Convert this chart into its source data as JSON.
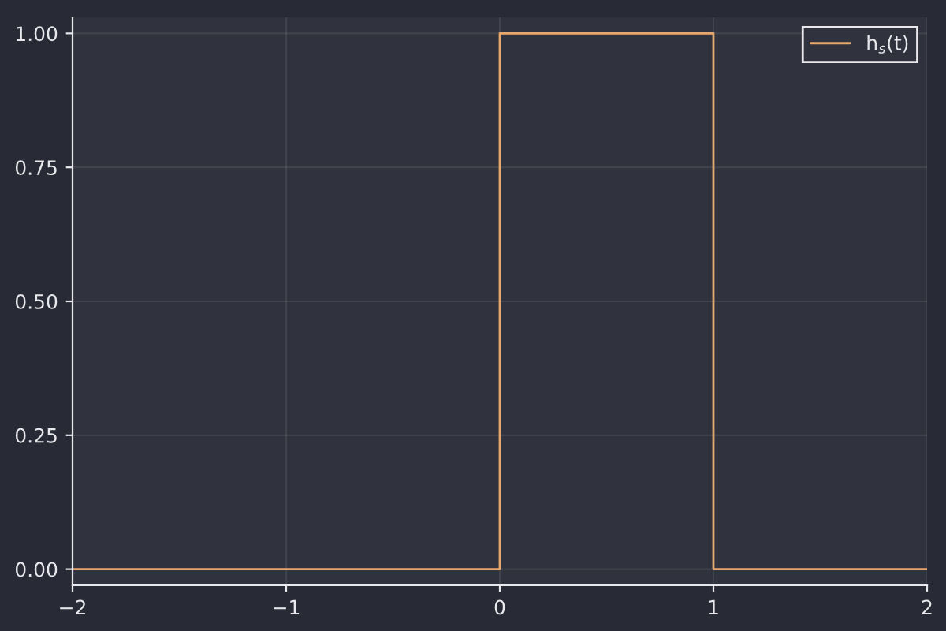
{
  "chart_data": {
    "type": "line",
    "x": [
      -2,
      0,
      0,
      1,
      1,
      2
    ],
    "series": [
      {
        "name": "h$_{s}$(t)",
        "color": "#e8a86a",
        "values": [
          0,
          0,
          1,
          1,
          0,
          0
        ]
      }
    ],
    "xlim": [
      -2,
      2
    ],
    "xticks": [
      -2,
      -1,
      0,
      1,
      2
    ],
    "ylim": [
      -0.03,
      1.03
    ],
    "yticks": [
      {
        "value": 0,
        "label": "0.00"
      },
      {
        "value": 0.25,
        "label": "0.25"
      },
      {
        "value": 0.5,
        "label": "0.50"
      },
      {
        "value": 0.75,
        "label": "0.75"
      },
      {
        "value": 1.0,
        "label": "1.00"
      }
    ],
    "grid": true,
    "legend": "top right"
  }
}
